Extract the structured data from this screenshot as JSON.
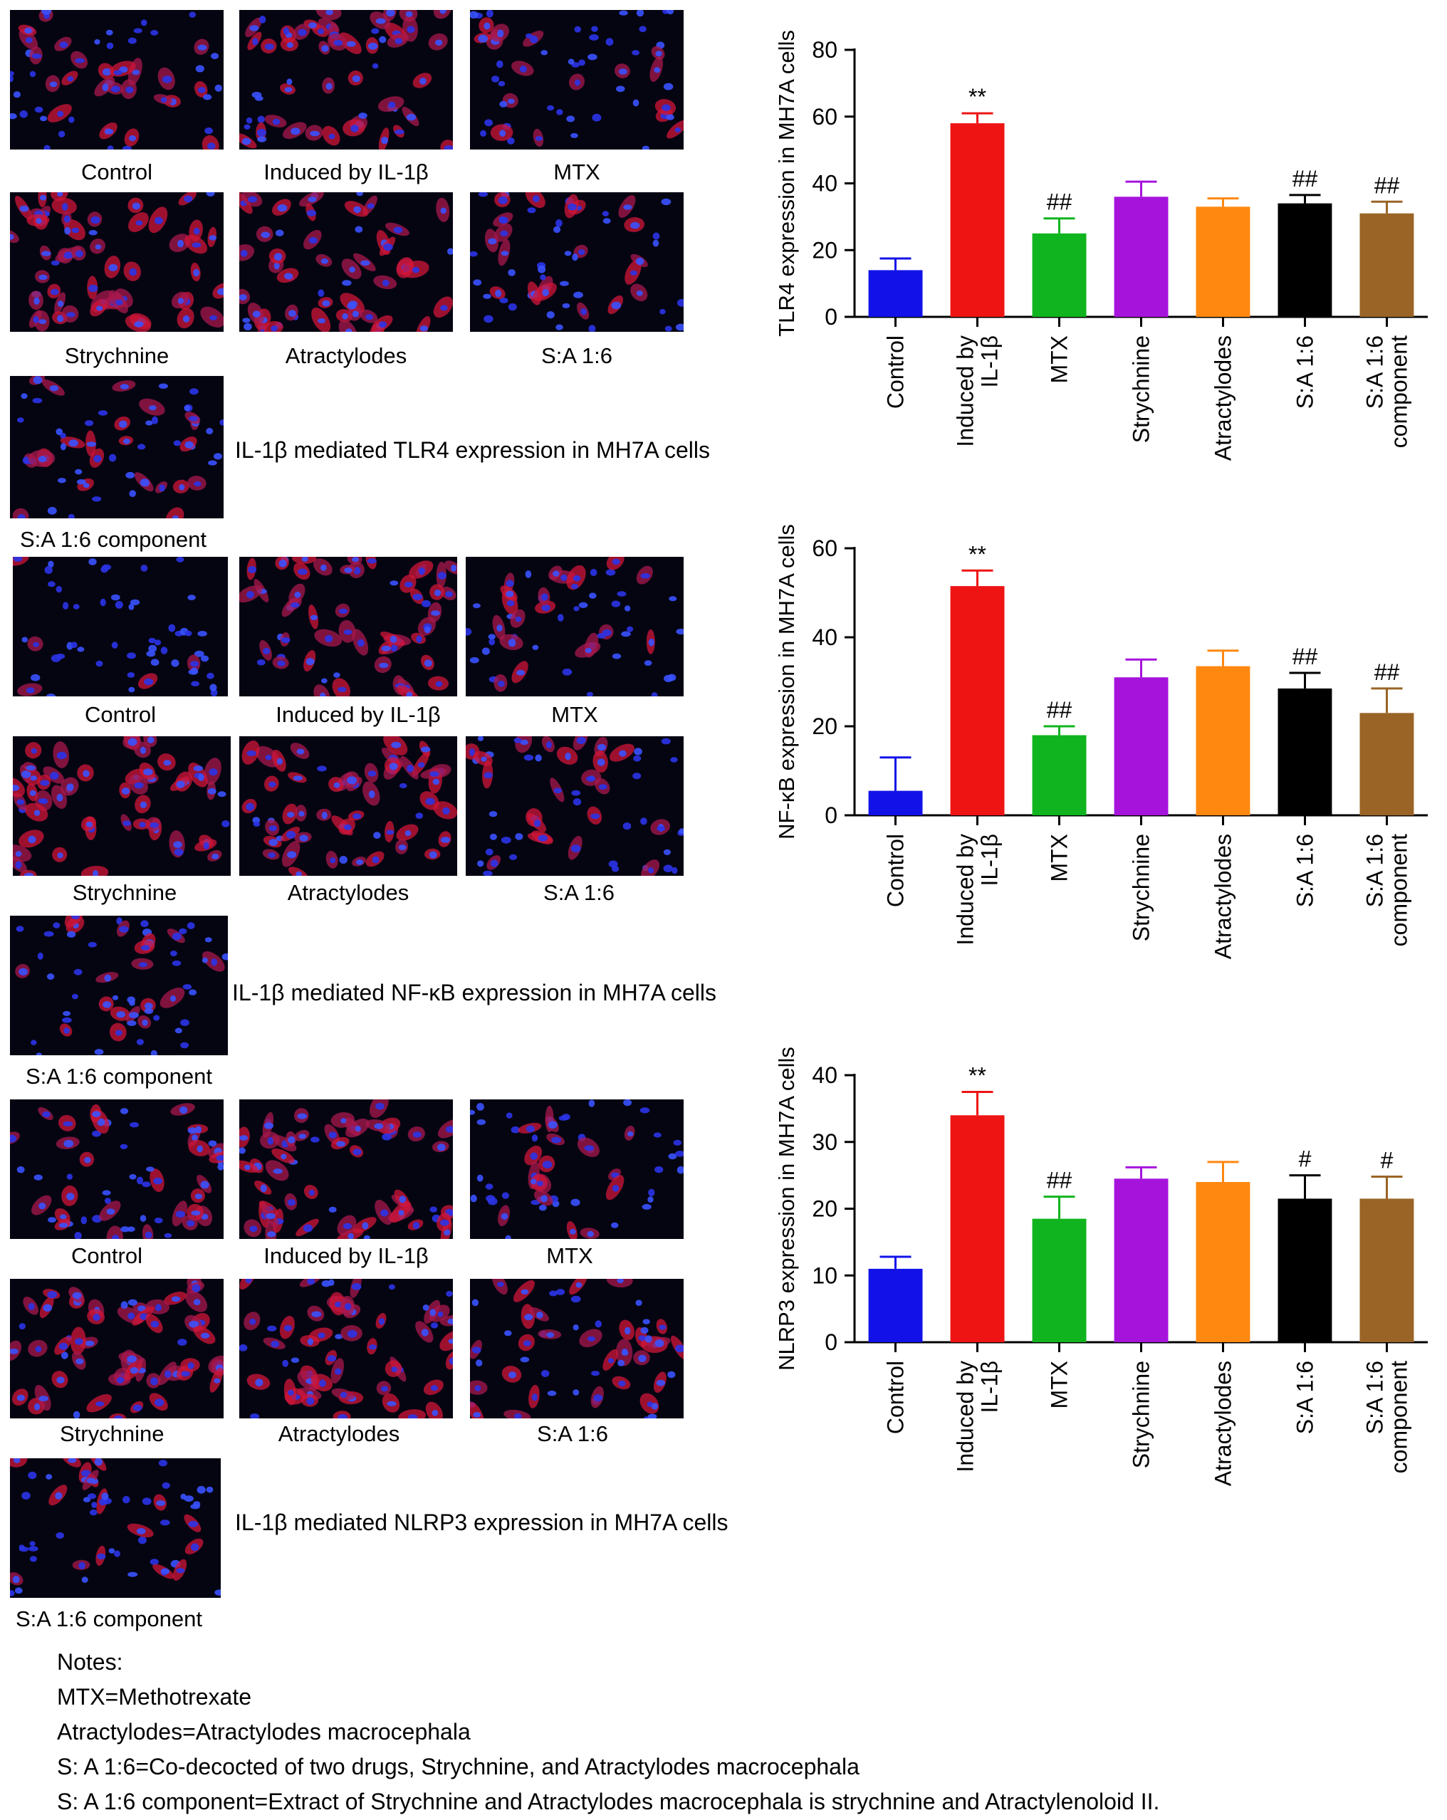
{
  "micrograph_sets": [
    {
      "captions": [
        "Control",
        "Induced by IL-1β",
        "MTX",
        "Strychnine",
        "Atractylodes",
        "S:A 1:6",
        "S:A 1:6 component"
      ],
      "title": "IL-1β mediated TLR4 expression in MH7A cells"
    },
    {
      "captions": [
        "Control",
        "Induced by IL-1β",
        "MTX",
        "Strychnine",
        "Atractylodes",
        "S:A 1:6",
        "S:A 1:6 component"
      ],
      "title": "IL-1β mediated NF-κB expression in MH7A cells"
    },
    {
      "captions": [
        "Control",
        "Induced by IL-1β",
        "MTX",
        "Strychnine",
        "Atractylodes",
        "S:A 1:6",
        "S:A 1:6 component"
      ],
      "title": "IL-1β mediated NLRP3 expression in MH7A cells"
    }
  ],
  "chart_data": [
    {
      "type": "bar",
      "ylabel": "TLR4 expression in MH7A cells",
      "ylim": [
        0,
        80
      ],
      "yticks": [
        0,
        20,
        40,
        60,
        80
      ],
      "categories": [
        [
          "Control"
        ],
        [
          "Induced by",
          "IL-1β"
        ],
        [
          "MTX"
        ],
        [
          "Strychnine"
        ],
        [
          "Atractylodes"
        ],
        [
          "S:A 1:6"
        ],
        [
          "S:A 1:6",
          "component"
        ]
      ],
      "values": [
        14,
        58,
        25,
        36,
        33,
        34,
        31
      ],
      "errors": [
        3.5,
        3,
        4.5,
        4.5,
        2.5,
        2.5,
        3.5
      ],
      "annotations": [
        "",
        "**",
        "##",
        "",
        "",
        "##",
        "##"
      ],
      "colors": [
        "#1212e8",
        "#ee1414",
        "#10b41e",
        "#a614dc",
        "#ff8810",
        "#000000",
        "#9a6426"
      ]
    },
    {
      "type": "bar",
      "ylabel": "NF-κB expression in MH7A cells",
      "ylim": [
        0,
        60
      ],
      "yticks": [
        0,
        20,
        40,
        60
      ],
      "categories": [
        [
          "Control"
        ],
        [
          "Induced by",
          "IL-1β"
        ],
        [
          "MTX"
        ],
        [
          "Strychnine"
        ],
        [
          "Atractylodes"
        ],
        [
          "S:A 1:6"
        ],
        [
          "S:A 1:6",
          "component"
        ]
      ],
      "values": [
        5.5,
        51.5,
        18,
        31,
        33.5,
        28.5,
        23
      ],
      "errors": [
        7.5,
        3.5,
        2,
        4,
        3.5,
        3.5,
        5.5
      ],
      "annotations": [
        "",
        "**",
        "##",
        "",
        "",
        "##",
        "##"
      ],
      "colors": [
        "#1212e8",
        "#ee1414",
        "#10b41e",
        "#a614dc",
        "#ff8810",
        "#000000",
        "#9a6426"
      ]
    },
    {
      "type": "bar",
      "ylabel": "NLRP3 expression in MH7A cells",
      "ylim": [
        0,
        40
      ],
      "yticks": [
        0,
        10,
        20,
        30,
        40
      ],
      "categories": [
        [
          "Control"
        ],
        [
          "Induced by",
          "IL-1β"
        ],
        [
          "MTX"
        ],
        [
          "Strychnine"
        ],
        [
          "Atractylodes"
        ],
        [
          "S:A 1:6"
        ],
        [
          "S:A 1:6",
          "component"
        ]
      ],
      "values": [
        11,
        34,
        18.5,
        24.5,
        24,
        21.5,
        21.5
      ],
      "errors": [
        1.8,
        3.5,
        3.3,
        1.7,
        3,
        3.5,
        3.3
      ],
      "annotations": [
        "",
        "**",
        "##",
        "",
        "",
        "#",
        "#"
      ],
      "colors": [
        "#1212e8",
        "#ee1414",
        "#10b41e",
        "#a614dc",
        "#ff8810",
        "#000000",
        "#9a6426"
      ]
    }
  ],
  "notes": {
    "heading": "Notes:",
    "lines": [
      "MTX=Methotrexate",
      "Atractylodes=Atractylodes macrocephala",
      "S: A 1:6=Co-decocted of two drugs, Strychnine, and  Atractylodes macrocephala",
      "S: A 1:6 component=Extract of Strychnine and  Atractylodes macrocephala is strychnine and Atractylenoloid II."
    ]
  }
}
